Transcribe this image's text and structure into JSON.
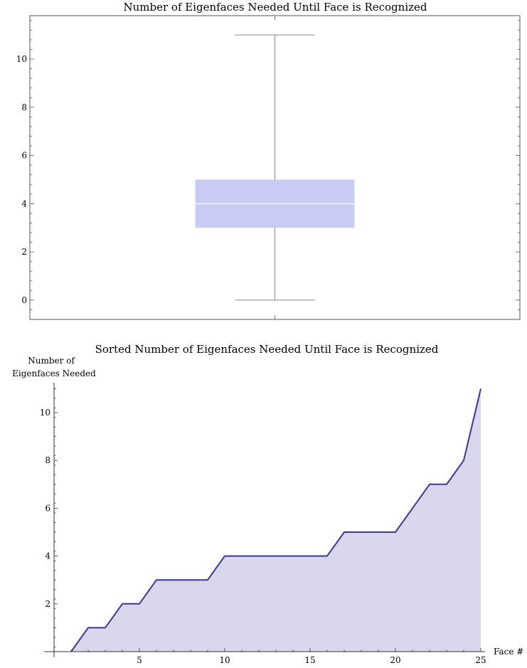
{
  "chart_data": [
    {
      "type": "box",
      "title": "Number of Eigenfaces Needed Until Face is Recognized",
      "ylim": [
        -0.8,
        11.8
      ],
      "yticks": [
        0,
        2,
        4,
        6,
        8,
        10
      ],
      "box": {
        "min": 0,
        "q1": 3,
        "median": 4,
        "q3": 5,
        "max": 11
      },
      "box_color": "#c8ccf5",
      "frame": true
    },
    {
      "type": "area",
      "title": "Sorted Number of Eigenfaces Needed Until Face is Recognized",
      "xlabel": "Face #",
      "ylabel": "Number of Eigenfaces Needed",
      "ylabel_lines": [
        "Number of",
        "Eigenfaces Needed"
      ],
      "x": [
        1,
        2,
        3,
        4,
        5,
        6,
        7,
        8,
        9,
        10,
        11,
        12,
        13,
        14,
        15,
        16,
        17,
        18,
        19,
        20,
        21,
        22,
        23,
        24,
        25
      ],
      "values": [
        0,
        1,
        1,
        2,
        2,
        3,
        3,
        3,
        3,
        4,
        4,
        4,
        4,
        4,
        4,
        4,
        5,
        5,
        5,
        5,
        6,
        7,
        7,
        8,
        11
      ],
      "xlim": [
        0,
        25
      ],
      "ylim": [
        0,
        11
      ],
      "xticks": [
        5,
        10,
        15,
        20,
        25
      ],
      "yticks": [
        2,
        4,
        6,
        8,
        10
      ],
      "line_color": "#3b35a0",
      "fill_color": "#d9d7ec"
    }
  ]
}
